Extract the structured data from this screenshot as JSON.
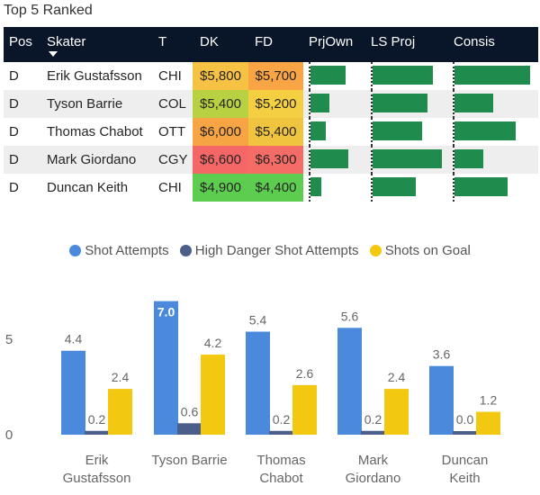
{
  "table": {
    "title": "Top 5 Ranked",
    "columns": [
      "Pos",
      "Skater",
      "T",
      "DK",
      "FD",
      "PrjOwn",
      "LS Proj",
      "Consis"
    ],
    "rows": [
      {
        "pos": "D",
        "skater": "Erik Gustafsson",
        "team": "CHI",
        "dk": "$5,800",
        "fd": "$5,700",
        "dk_color": "#f6c244",
        "fd_color": "#f9a546",
        "prjown": 0.69,
        "lsproj": 0.87,
        "consis": 0.95
      },
      {
        "pos": "D",
        "skater": "Tyson Barrie",
        "team": "COL",
        "dk": "$5,400",
        "fd": "$5,200",
        "dk_color": "#b8d143",
        "fd_color": "#f4cf42",
        "prjown": 0.38,
        "lsproj": 0.79,
        "consis": 0.49
      },
      {
        "pos": "D",
        "skater": "Thomas Chabot",
        "team": "OTT",
        "dk": "$6,000",
        "fd": "$5,400",
        "dk_color": "#f7a444",
        "fd_color": "#f1c43f",
        "prjown": 0.3,
        "lsproj": 0.72,
        "consis": 0.77
      },
      {
        "pos": "D",
        "skater": "Mark Giordano",
        "team": "CGY",
        "dk": "$6,600",
        "fd": "$6,300",
        "dk_color": "#f56767",
        "fd_color": "#f56b66",
        "prjown": 0.75,
        "lsproj": 1.0,
        "consis": 0.36
      },
      {
        "pos": "D",
        "skater": "Duncan Keith",
        "team": "CHI",
        "dk": "$4,900",
        "fd": "$4,400",
        "dk_color": "#5ccd4f",
        "fd_color": "#5ccd4f",
        "prjown": 0.22,
        "lsproj": 0.62,
        "consis": 0.67
      }
    ]
  },
  "chart_data": {
    "type": "bar",
    "categories": [
      [
        "Erik",
        "Gustafsson"
      ],
      [
        "Tyson Barrie"
      ],
      [
        "Thomas",
        "Chabot"
      ],
      [
        "Mark",
        "Giordano"
      ],
      [
        "Duncan",
        "Keith"
      ]
    ],
    "series": [
      {
        "name": "Shot Attempts",
        "color": "#4a89dc",
        "values": [
          4.4,
          7.0,
          5.4,
          5.6,
          3.6
        ],
        "labels": [
          "4.4",
          "7.0",
          "5.4",
          "5.6",
          "3.6"
        ]
      },
      {
        "name": "High Danger Shot Attempts",
        "color": "#4c5f8a",
        "values": [
          0.2,
          0.6,
          0.2,
          0.2,
          0.0
        ],
        "labels": [
          "0.2",
          "0.6",
          "0.2",
          "0.2",
          "0.0"
        ]
      },
      {
        "name": "Shots on Goal",
        "color": "#f2c811",
        "values": [
          2.4,
          4.2,
          2.6,
          2.4,
          1.2
        ],
        "labels": [
          "2.4",
          "4.2",
          "2.6",
          "2.4",
          "1.2"
        ]
      }
    ],
    "yticks": [
      "0",
      "5"
    ],
    "ylim": [
      0,
      7.3
    ]
  }
}
